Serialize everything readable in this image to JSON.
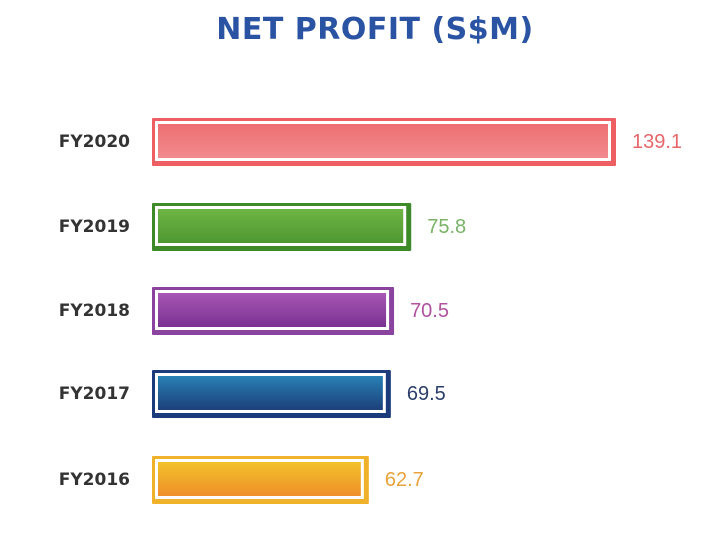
{
  "chart_data": {
    "type": "bar",
    "orientation": "horizontal",
    "title": "NET PROFIT (S$M)",
    "categories": [
      "FY2020",
      "FY2019",
      "FY2018",
      "FY2017",
      "FY2016"
    ],
    "values": [
      139.1,
      75.8,
      70.5,
      69.5,
      62.7
    ],
    "data_labels": [
      "139.1",
      "75.8",
      "70.5",
      "69.5",
      "62.7"
    ],
    "colors": [
      {
        "top": "#ee6f73",
        "bottom": "#f08a8d",
        "border": "#ee5f63",
        "label": "#e8666a"
      },
      {
        "top": "#6eb545",
        "bottom": "#4f9731",
        "border": "#3f8a28",
        "label": "#7ab368"
      },
      {
        "top": "#a857b5",
        "bottom": "#7a3192",
        "border": "#8a449f",
        "label": "#b0529f"
      },
      {
        "top": "#2781b5",
        "bottom": "#1d3f7a",
        "border": "#1c3b7a",
        "label": "#2b3d6b"
      },
      {
        "top": "#f2c22a",
        "bottom": "#ef8f2a",
        "border": "#f0b22a",
        "label": "#e9a33a"
      }
    ],
    "xlim": [
      0,
      139.1
    ],
    "grid": false,
    "legend": "none",
    "xlabel": "",
    "ylabel": ""
  }
}
